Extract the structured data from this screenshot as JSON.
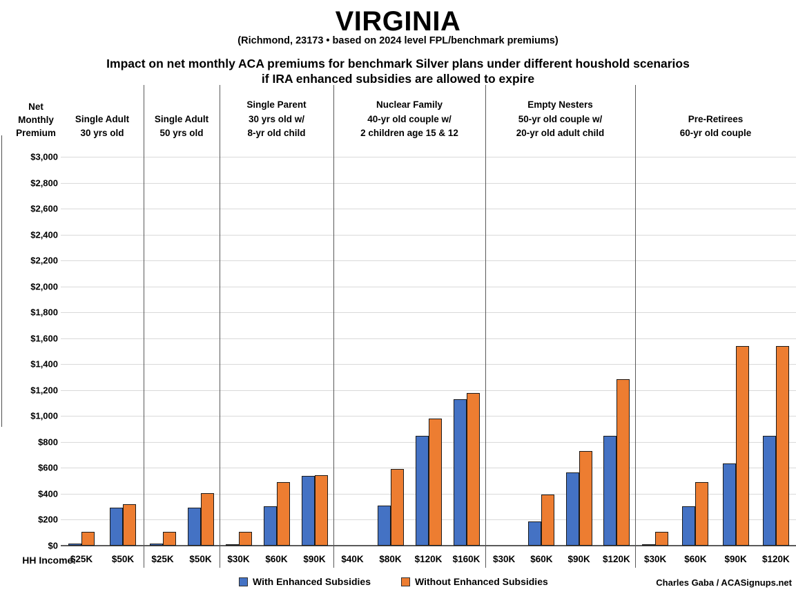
{
  "title": "VIRGINIA",
  "subtitle": "(Richmond, 23173 • based on 2024 level FPL/benchmark premiums)",
  "heading_line1": "Impact on net monthly ACA premiums for benchmark Silver plans under different houshold scenarios",
  "heading_line2": "if IRA enhanced subsidies are allowed to expire",
  "y_axis_title": "Net\nMonthly\nPremium",
  "hh_income_label": "HH Income:",
  "credit": "Charles Gaba / ACASignups.net",
  "legend": {
    "items": [
      {
        "label": "With Enhanced Subsidies",
        "color": "#4472C4"
      },
      {
        "label": "Without Enhanced Subsidies",
        "color": "#ED7D31"
      }
    ]
  },
  "colors": {
    "with_enhanced": "#4472C4",
    "without_enhanced": "#ED7D31",
    "gridline": "#D9D9D9",
    "separator": "#595959"
  },
  "chart_data": {
    "type": "bar",
    "title": "VIRGINIA",
    "subtitle": "(Richmond, 23173 • based on 2024 level FPL/benchmark premiums)",
    "description": "Impact on net monthly ACA premiums for benchmark Silver plans under different houshold scenarios if IRA enhanced subsidies are allowed to expire",
    "xlabel": "HH Income:",
    "ylabel": "Net Monthly Premium",
    "ylim": [
      0,
      3000
    ],
    "ytick_interval": 200,
    "ytick_labels": [
      "$3,000",
      "$2,800",
      "$2,600",
      "$2,400",
      "$2,200",
      "$2,000",
      "$1,800",
      "$1,600",
      "$1,400",
      "$1,200",
      "$1,000",
      "$800",
      "$600",
      "$400",
      "$200",
      "$0"
    ],
    "grid": true,
    "legend_position": "bottom",
    "series": [
      {
        "name": "With Enhanced Subsidies",
        "color": "#4472C4"
      },
      {
        "name": "Without Enhanced Subsidies",
        "color": "#ED7D31"
      }
    ],
    "groups": [
      {
        "label": "Single Adult\n30 yrs old",
        "categories": [
          "$25K",
          "$50K"
        ],
        "with_enhanced": [
          15,
          295
        ],
        "without_enhanced": [
          105,
          320
        ]
      },
      {
        "label": "Single Adult\n50 yrs old",
        "categories": [
          "$25K",
          "$50K"
        ],
        "with_enhanced": [
          15,
          295
        ],
        "without_enhanced": [
          105,
          405
        ]
      },
      {
        "label": "Single Parent\n30 yrs old w/\n8-yr old child",
        "categories": [
          "$30K",
          "$60K",
          "$90K"
        ],
        "with_enhanced": [
          5,
          305,
          540
        ],
        "without_enhanced": [
          105,
          490,
          545
        ]
      },
      {
        "label": "Nuclear Family\n40-yr old couple w/\n2 children age 15 & 12",
        "categories": [
          "$40K",
          "$80K",
          "$120K",
          "$160K"
        ],
        "with_enhanced": [
          0,
          310,
          845,
          1130
        ],
        "without_enhanced": [
          0,
          590,
          980,
          1180
        ]
      },
      {
        "label": "Empty Nesters\n50-yr old couple w/\n20-yr old adult child",
        "categories": [
          "$30K",
          "$60K",
          "$90K",
          "$120K"
        ],
        "with_enhanced": [
          0,
          185,
          565,
          845
        ],
        "without_enhanced": [
          0,
          395,
          730,
          1285
        ]
      },
      {
        "label": "Pre-Retirees\n60-yr old couple",
        "categories": [
          "$30K",
          "$60K",
          "$90K",
          "$120K"
        ],
        "with_enhanced": [
          5,
          305,
          635,
          845
        ],
        "without_enhanced": [
          105,
          490,
          1540,
          1540
        ]
      }
    ]
  }
}
